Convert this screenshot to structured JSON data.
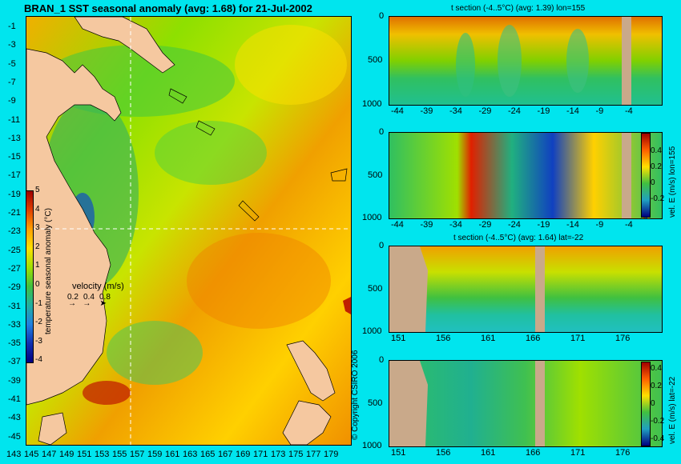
{
  "chart_data": [
    {
      "type": "heatmap",
      "id": "map",
      "title": "BRAN_1 SST seasonal anomaly (avg: 1.68) for 21-Jul-2002",
      "yticks": [
        "-1",
        "-3",
        "-5",
        "-7",
        "-9",
        "-11",
        "-13",
        "-15",
        "-17",
        "-19",
        "-21",
        "-23",
        "-25",
        "-27",
        "-29",
        "-31",
        "-33",
        "-35",
        "-37",
        "-39",
        "-41",
        "-43",
        "-45"
      ],
      "xticks": [
        "143",
        "145",
        "147",
        "149",
        "151",
        "153",
        "155",
        "157",
        "159",
        "161",
        "163",
        "165",
        "167",
        "169",
        "171",
        "173",
        "175",
        "177",
        "179"
      ],
      "colorbar": {
        "label": "temperature seasonal anomaly (°C)",
        "ticks": [
          "5",
          "4",
          "3",
          "2",
          "1",
          "0",
          "-1",
          "-2",
          "-3",
          "-4"
        ]
      },
      "velocity_legend": {
        "label": "velocity (m/s)",
        "values": [
          "0.2",
          "0.4",
          "0.8"
        ]
      },
      "crosshair": {
        "lon": 155,
        "lat": -22
      },
      "xlim": [
        143,
        180
      ],
      "ylim": [
        -45,
        0
      ]
    },
    {
      "type": "heatmap",
      "id": "t-lon",
      "title": "t section (-4..5°C) (avg: 1.39) lon=155",
      "xticks": [
        "-44",
        "-39",
        "-34",
        "-29",
        "-24",
        "-19",
        "-14",
        "-9",
        "-4"
      ],
      "yticks": [
        "0",
        "500",
        "1000"
      ],
      "xlim": [
        -45,
        0
      ],
      "ylim": [
        1050,
        0
      ]
    },
    {
      "type": "heatmap",
      "id": "v-lon",
      "title": "",
      "xticks": [
        "-44",
        "-39",
        "-34",
        "-29",
        "-24",
        "-19",
        "-14",
        "-9",
        "-4"
      ],
      "yticks": [
        "0",
        "500",
        "1000"
      ],
      "side_label": "vel. E (m/s) lon=155",
      "colorbar_ticks": [
        "0.4",
        "0.2",
        "0",
        "-0.2"
      ],
      "xlim": [
        -45,
        0
      ],
      "ylim": [
        1050,
        0
      ]
    },
    {
      "type": "heatmap",
      "id": "t-lat",
      "title": "t section (-4..5°C) (avg: 1.64) lat=-22",
      "xticks": [
        "151",
        "156",
        "161",
        "166",
        "171",
        "176"
      ],
      "yticks": [
        "0",
        "500",
        "1000"
      ],
      "xlim": [
        150,
        180
      ],
      "ylim": [
        1050,
        0
      ]
    },
    {
      "type": "heatmap",
      "id": "v-lat",
      "title": "",
      "xticks": [
        "151",
        "156",
        "161",
        "166",
        "171",
        "176"
      ],
      "yticks": [
        "0",
        "500",
        "1000"
      ],
      "side_label": "vel. E (m/s) lat=-22",
      "colorbar_ticks": [
        "0.4",
        "0.2",
        "0",
        "-0.2",
        "-0.4"
      ],
      "xlim": [
        150,
        180
      ],
      "ylim": [
        1050,
        0
      ]
    }
  ],
  "copyright": "© Copyright CSIRO 2006",
  "colors": {
    "background": "#00e5ee",
    "land": "#f5c8a0",
    "section_land": "#c9a98a"
  }
}
